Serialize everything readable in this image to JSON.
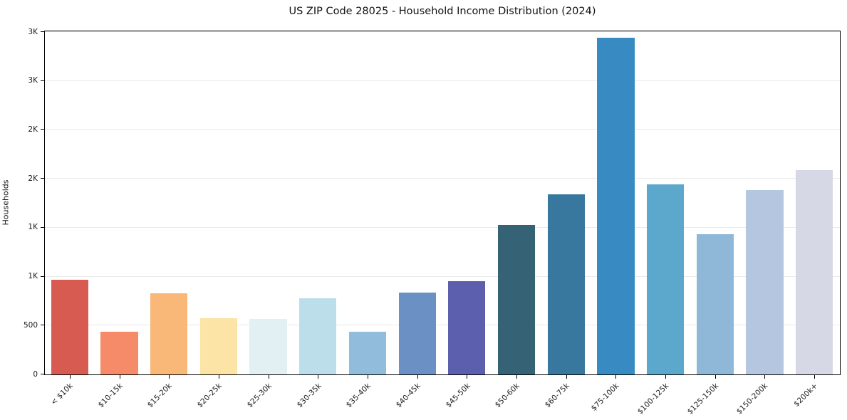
{
  "figure": {
    "title": "US ZIP Code 28025 - Household Income Distribution (2024)"
  },
  "chart_data": {
    "type": "bar",
    "title": "US ZIP Code 28025 - Household Income Distribution (2024)",
    "xlabel": "",
    "ylabel": "Households",
    "categories": [
      "< $10k",
      "$10-15k",
      "$15-20k",
      "$20-25k",
      "$25-30k",
      "$30-35k",
      "$35-40k",
      "$40-45k",
      "$45-50k",
      "$50-60k",
      "$60-75k",
      "$75-100k",
      "$100-125k",
      "$125-150k",
      "$150-200k",
      "$200k+"
    ],
    "values": [
      970,
      440,
      830,
      575,
      570,
      780,
      440,
      835,
      950,
      1530,
      1840,
      3445,
      1945,
      1435,
      1885,
      2085
    ],
    "bar_colors": [
      "#d85b52",
      "#f58b68",
      "#f9b878",
      "#fce3a6",
      "#e2f0f3",
      "#bcdeea",
      "#92bcdc",
      "#6b91c4",
      "#5b5fae",
      "#356274",
      "#38789f",
      "#378bc2",
      "#5ca7cc",
      "#8fb8d8",
      "#b5c7e0",
      "#d6d8e6"
    ],
    "ylim": [
      0,
      3500
    ],
    "y_ticks": {
      "values": [
        0,
        500,
        1000,
        1500,
        2000,
        2500,
        3000,
        3500
      ],
      "labels": [
        "0",
        "500",
        "1K",
        "1K",
        "2K",
        "2K",
        "3K",
        "3K"
      ]
    },
    "bar_width_ratio": 0.75,
    "grid": "horizontal",
    "grid_color": "#e9e9e9",
    "background": "#ffffff",
    "spine_color": "#000000",
    "legend": "none"
  }
}
